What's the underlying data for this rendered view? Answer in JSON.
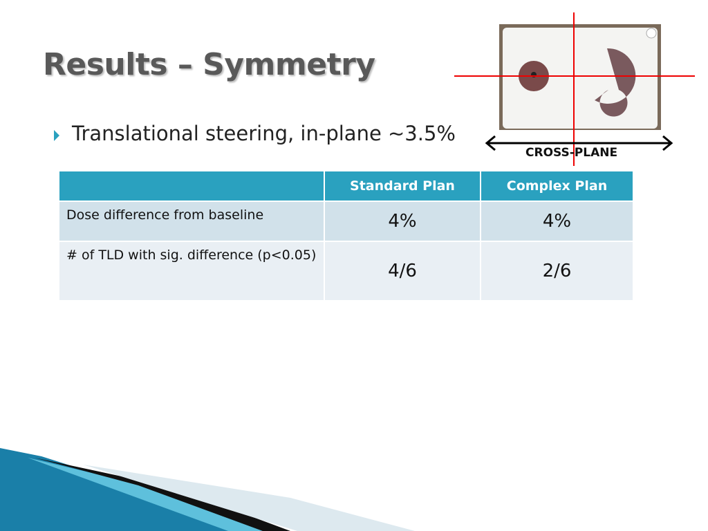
{
  "title": "Results – Symmetry",
  "bullets": [
    "Translational steering, in-plane ~3.5%"
  ],
  "figure_caption": "CROSS-PLANE",
  "table": {
    "header": [
      "",
      "Standard Plan",
      "Complex Plan"
    ],
    "rows": [
      [
        "Dose difference from baseline",
        "4%",
        "4%"
      ],
      [
        "# of TLD with sig. difference (p<0.05)",
        "4/6",
        "2/6"
      ]
    ]
  }
}
